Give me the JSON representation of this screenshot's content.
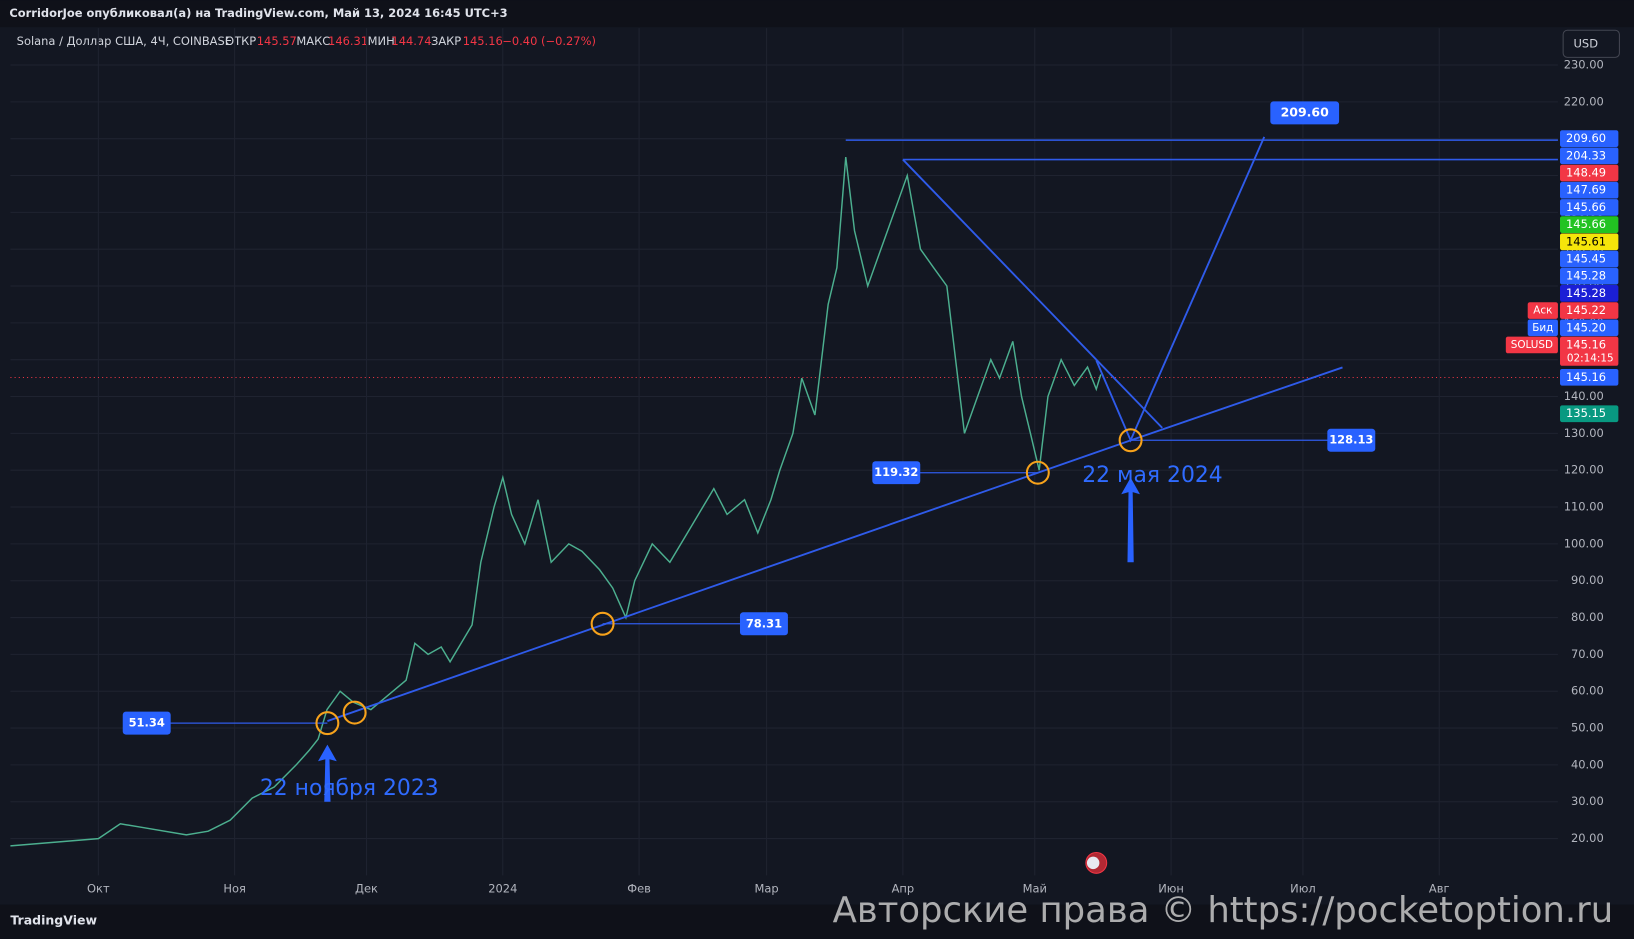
{
  "header": {
    "title": "CorridorJoe опубликовал(а) на TradingView.com, Май 13, 2024 16:45 UTC+3",
    "symbol": "Solana / Доллар США, 4Ч, COINBASE",
    "ohlc": [
      {
        "label": "ОТКР",
        "value": "145.57"
      },
      {
        "label": "МАКС",
        "value": "146.31"
      },
      {
        "label": "МИН",
        "value": "144.74"
      },
      {
        "label": "ЗАКР",
        "value": "145.16"
      }
    ],
    "change": "−0.40 (−0.27%)",
    "currency": "USD"
  },
  "footer": {
    "brand": "TradingView",
    "watermark": "Авторские права © https://pocketoption.ru"
  },
  "chart_data": {
    "type": "line",
    "color": "#4caf8f",
    "grid": true,
    "x": [
      -20,
      -10,
      0,
      5,
      10,
      20,
      25,
      30,
      35,
      40,
      45,
      48,
      50,
      52,
      55,
      58,
      62,
      65,
      70,
      72,
      75,
      78,
      80,
      85,
      87,
      90,
      92,
      94,
      97,
      100,
      103,
      107,
      110,
      114,
      117,
      120,
      122,
      126,
      130,
      135,
      140,
      143,
      147,
      150,
      153,
      155,
      158,
      160,
      163,
      166,
      168,
      170,
      172,
      175,
      178,
      181,
      184,
      187,
      190,
      193,
      195,
      197,
      200,
      203,
      205,
      208,
      210,
      212,
      214,
      216,
      219,
      222,
      225,
      227,
      228
    ],
    "values": [
      18,
      19,
      20,
      24,
      23,
      21,
      22,
      25,
      31,
      34,
      40,
      44,
      47,
      55,
      60,
      57,
      55,
      58,
      63,
      73,
      70,
      72,
      68,
      78,
      95,
      110,
      118,
      108,
      100,
      112,
      95,
      100,
      98,
      93,
      88,
      80,
      90,
      100,
      95,
      105,
      115,
      108,
      112,
      103,
      112,
      120,
      130,
      145,
      135,
      165,
      175,
      205,
      185,
      170,
      180,
      190,
      200,
      180,
      175,
      170,
      150,
      130,
      140,
      150,
      145,
      155,
      140,
      130,
      120,
      140,
      150,
      143,
      148,
      142,
      146
    ],
    "xlim": [
      -20,
      332
    ],
    "ylim": [
      10,
      240
    ],
    "xticks": [
      {
        "value": 0,
        "label": "Окт"
      },
      {
        "value": 31,
        "label": "Ноя"
      },
      {
        "value": 61,
        "label": "Дек"
      },
      {
        "value": 92,
        "label": "2024"
      },
      {
        "value": 123,
        "label": "Фев"
      },
      {
        "value": 152,
        "label": "Мар"
      },
      {
        "value": 183,
        "label": "Апр"
      },
      {
        "value": 213,
        "label": "Май"
      },
      {
        "value": 244,
        "label": "Июн"
      },
      {
        "value": 274,
        "label": "Июл"
      },
      {
        "value": 305,
        "label": "Авг"
      }
    ],
    "yticks": [
      {
        "value": 20,
        "label": "20.00"
      },
      {
        "value": 30,
        "label": "30.00"
      },
      {
        "value": 40,
        "label": "40.00"
      },
      {
        "value": 50,
        "label": "50.00"
      },
      {
        "value": 60,
        "label": "60.00"
      },
      {
        "value": 70,
        "label": "70.00"
      },
      {
        "value": 80,
        "label": "80.00"
      },
      {
        "value": 90,
        "label": "90.00"
      },
      {
        "value": 100,
        "label": "100.00"
      },
      {
        "value": 110,
        "label": "110.00"
      },
      {
        "value": 120,
        "label": "120.00"
      },
      {
        "value": 130,
        "label": "130.00"
      },
      {
        "value": 140,
        "label": "140.00"
      },
      {
        "value": 150,
        "label": "150.00"
      },
      {
        "value": 160,
        "label": "160.00"
      },
      {
        "value": 170,
        "label": "170.00"
      },
      {
        "value": 180,
        "label": "180.00"
      },
      {
        "value": 190,
        "label": "190.00"
      },
      {
        "value": 200,
        "label": "200.00"
      },
      {
        "value": 210,
        "label": "210.00"
      },
      {
        "value": 220,
        "label": "220.00"
      },
      {
        "value": 230,
        "label": "230.00"
      }
    ],
    "last_price": 145.16,
    "levels": [
      {
        "value": 209.6,
        "from": 170
      },
      {
        "value": 204.33,
        "from": 183
      }
    ],
    "trend": {
      "x": [
        52.1,
        234.8,
        283
      ],
      "y": [
        51.9,
        128.1,
        147.9
      ]
    },
    "pattern_lines": [
      {
        "x": [
          183,
          242
        ],
        "y": [
          204.33,
          131.5
        ]
      },
      {
        "x": [
          227,
          234.8,
          265.2
        ],
        "y": [
          149.8,
          128.13,
          210.5
        ]
      }
    ],
    "touches": [
      {
        "x": 52.1,
        "y": 51.34
      },
      {
        "x": 58.3,
        "y": 54.2
      },
      {
        "x": 114.7,
        "y": 78.31
      },
      {
        "x": 213.7,
        "y": 119.32
      },
      {
        "x": 234.8,
        "y": 128.13
      }
    ],
    "callouts": [
      {
        "label": "51.34",
        "value": 51.34,
        "from": 11,
        "to": 52.1,
        "box": "start"
      },
      {
        "label": "78.31",
        "value": 78.31,
        "from": 114.7,
        "to": 151.4,
        "box": "end"
      },
      {
        "label": "119.32",
        "value": 119.32,
        "from": 181.5,
        "to": 213.7,
        "box": "start"
      },
      {
        "label": "128.13",
        "value": 128.13,
        "from": 234.8,
        "to": 285,
        "box": "end"
      }
    ],
    "target": {
      "label": "209.60",
      "x": 274.4,
      "value": 217
    },
    "annotations": [
      {
        "text": "22 ноября 2023",
        "x": 52.1,
        "y": 32,
        "arrow_from": 30,
        "arrow_to": 45.5
      },
      {
        "text": "22 мая 2024",
        "x": 234.8,
        "y": 117,
        "arrow_from": 95,
        "arrow_to": 118
      }
    ],
    "price_labels": [
      {
        "label": "209.60",
        "color": "#2962ff"
      },
      {
        "label": "204.33",
        "color": "#2962ff"
      },
      {
        "label": "148.49",
        "color": "#f23645"
      },
      {
        "label": "147.69",
        "color": "#2962ff"
      },
      {
        "label": "145.66",
        "color": "#2962ff"
      },
      {
        "label": "145.66",
        "color": "#22c322"
      },
      {
        "label": "145.61",
        "color": "#f5e50a"
      },
      {
        "label": "145.45",
        "color": "#2962ff"
      },
      {
        "label": "145.28",
        "color": "#2962ff"
      },
      {
        "label": "145.28",
        "color": "#1b1fd6"
      },
      {
        "label": "145.22",
        "color": "#f23645",
        "tag": "Аск"
      },
      {
        "label": "145.20",
        "color": "#2962ff",
        "tag": "Бид"
      },
      {
        "label": "145.16",
        "color": "#f23645",
        "tag": "SOLUSD",
        "sub": "02:14:15"
      }
    ],
    "price_labels_low": [
      {
        "label": "145.16",
        "color": "#2962ff"
      },
      {
        "label": "135.15",
        "color": "#089981"
      }
    ]
  }
}
